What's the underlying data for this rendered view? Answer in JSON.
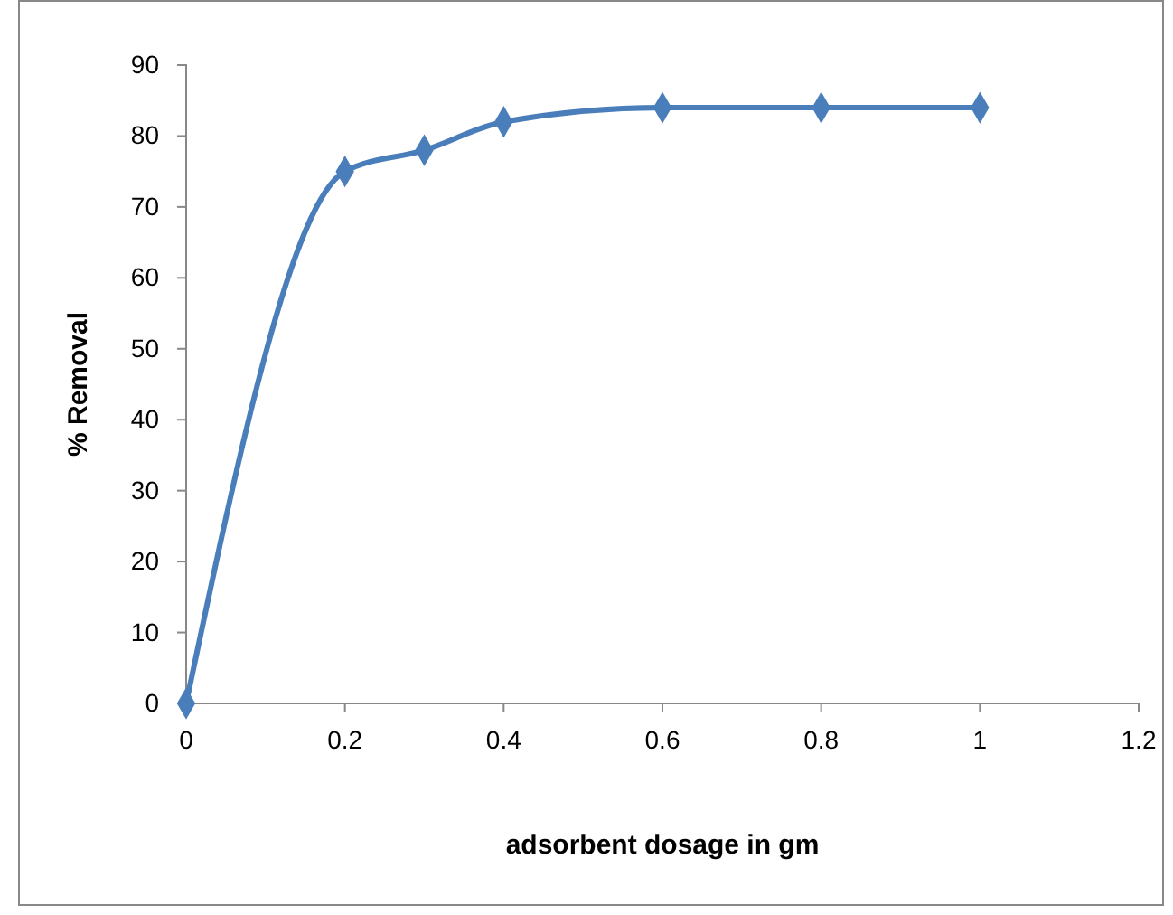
{
  "chart_data": {
    "type": "line",
    "xlabel": "adsorbent dosage in gm",
    "ylabel": "% Removal",
    "x": [
      0,
      0.2,
      0.3,
      0.4,
      0.6,
      0.8,
      1
    ],
    "series": [
      {
        "color": "#4a7ebb",
        "values": [
          0,
          75,
          78,
          82,
          84,
          84,
          84
        ]
      }
    ],
    "xlim": [
      0,
      1.2
    ],
    "xticks": [
      0,
      0.2,
      0.4,
      0.6,
      0.8,
      1,
      1.2
    ],
    "ylim": [
      0,
      90
    ],
    "yticks": [
      0,
      10,
      20,
      30,
      40,
      50,
      60,
      70,
      80,
      90
    ],
    "grid": false,
    "marker": "diamond",
    "line_style": "solid"
  }
}
